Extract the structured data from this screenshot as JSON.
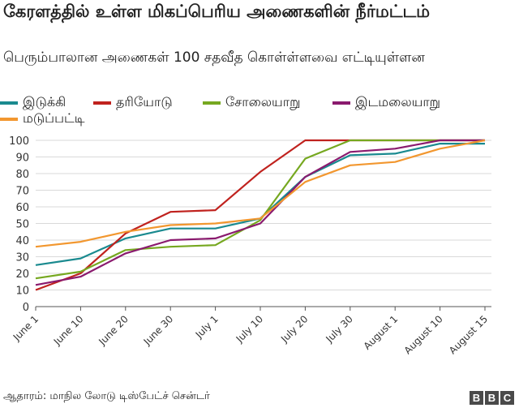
{
  "header": {
    "title": "கேரளத்தில் உள்ள மிகப்பெரிய அணைகளின் நீர்மட்டம்",
    "subtitle": "பெரும்பாலான அணைகள் 100 சதவீத கொள்ள்ளவை எட்டியுள்ளன"
  },
  "footer": {
    "source": "ஆதாரம்: மாநில லோடு டிஸ்பேட்ச் சென்டர்",
    "brand": [
      "B",
      "B",
      "C"
    ]
  },
  "colors": {
    "idukki": "#1a8a8f",
    "thariyodu": "#c0221e",
    "sholayar": "#76a820",
    "idamalayar": "#8a1a6e",
    "mattupetty": "#f2972f",
    "grid": "#d9d9d9",
    "axis": "#555555"
  },
  "chart_data": {
    "type": "line",
    "categories": [
      "June 1",
      "June 10",
      "June 20",
      "June 30",
      "July 1",
      "July 10",
      "July 20",
      "July 30",
      "August 1",
      "August 10",
      "August 15"
    ],
    "ylim": [
      0,
      100
    ],
    "yticks": [
      0,
      10,
      20,
      30,
      40,
      50,
      60,
      70,
      80,
      90,
      100
    ],
    "grid": true,
    "legend_position": "top",
    "series": [
      {
        "name": "இடுக்கி",
        "color_key": "idukki",
        "values": [
          25,
          29,
          41,
          47,
          47,
          53,
          78,
          91,
          92,
          98,
          98
        ]
      },
      {
        "name": "தரியோடு",
        "color_key": "thariyodu",
        "values": [
          10,
          20,
          44,
          57,
          58,
          81,
          100,
          100,
          100,
          100,
          100
        ]
      },
      {
        "name": "சோலையாறு",
        "color_key": "sholayar",
        "values": [
          17,
          21,
          34,
          36,
          37,
          52,
          89,
          100,
          100,
          100,
          100
        ]
      },
      {
        "name": "இடமலையாறு",
        "color_key": "idamalayar",
        "values": [
          13,
          18,
          32,
          40,
          41,
          50,
          78,
          93,
          95,
          100,
          100
        ]
      },
      {
        "name": "மடுப்பட்டி",
        "color_key": "mattupetty",
        "values": [
          36,
          39,
          45,
          49,
          50,
          53,
          75,
          85,
          87,
          95,
          100
        ]
      }
    ]
  }
}
